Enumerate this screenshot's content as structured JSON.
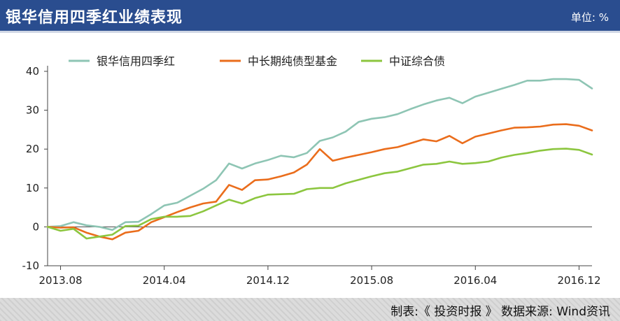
{
  "header": {
    "title": "银华信用四季红业绩表现",
    "unit": "单位: %"
  },
  "footer": {
    "source": "制表:《 投资时报 》  数据来源: Wind资讯"
  },
  "colors": {
    "header_bg": "#2a4d8f",
    "series_1": "#8ec5b4",
    "series_2": "#ea6d1c",
    "series_3": "#8cc63f"
  },
  "chart_data": {
    "type": "line",
    "title": "银华信用四季红业绩表现",
    "ylabel": "",
    "xlabel": "",
    "ylim": [
      -10,
      40
    ],
    "yticks": [
      -10,
      0,
      10,
      20,
      30,
      40
    ],
    "xlim": [
      "2013-07",
      "2017-01"
    ],
    "xtick_labels": [
      "2013.08",
      "2014.04",
      "2014.12",
      "2015.08",
      "2016.04",
      "2016.12"
    ],
    "grid": false,
    "legend_position": "top",
    "x": [
      "2013-07",
      "2013-08",
      "2013-09",
      "2013-10",
      "2013-11",
      "2013-12",
      "2014-01",
      "2014-02",
      "2014-03",
      "2014-04",
      "2014-05",
      "2014-06",
      "2014-07",
      "2014-08",
      "2014-09",
      "2014-10",
      "2014-11",
      "2014-12",
      "2015-01",
      "2015-02",
      "2015-03",
      "2015-04",
      "2015-05",
      "2015-06",
      "2015-07",
      "2015-08",
      "2015-09",
      "2015-10",
      "2015-11",
      "2015-12",
      "2016-01",
      "2016-02",
      "2016-03",
      "2016-04",
      "2016-05",
      "2016-06",
      "2016-07",
      "2016-08",
      "2016-09",
      "2016-10",
      "2016-11",
      "2016-12",
      "2017-01"
    ],
    "series": [
      {
        "name": "银华信用四季红",
        "values": [
          0,
          0.2,
          1.2,
          0.4,
          0,
          -0.8,
          1.2,
          1.3,
          3.3,
          5.5,
          6.2,
          8,
          9.8,
          12,
          16.3,
          15,
          16.3,
          17.2,
          18.3,
          17.9,
          19,
          22.1,
          23,
          24.5,
          27,
          27.8,
          28.2,
          29,
          30.3,
          31.5,
          32.5,
          33.2,
          31.8,
          33.5,
          34.5,
          35.5,
          36.5,
          37.6,
          37.6,
          38,
          38,
          37.8,
          35.6
        ]
      },
      {
        "name": "中长期纯债型基金",
        "values": [
          0,
          -0.2,
          -0.1,
          -1.5,
          -2.5,
          -3.2,
          -1.5,
          -1,
          1.2,
          2.5,
          3.8,
          5,
          6,
          6.5,
          10.8,
          9.5,
          12,
          12.2,
          13,
          14,
          16,
          20,
          17,
          17.8,
          18.5,
          19.2,
          20,
          20.5,
          21.5,
          22.5,
          22,
          23.4,
          21.5,
          23.2,
          24,
          24.8,
          25.5,
          25.6,
          25.8,
          26.3,
          26.4,
          26,
          24.8
        ]
      },
      {
        "name": "中证综合债",
        "values": [
          0,
          -1,
          -0.5,
          -3,
          -2.5,
          -2,
          0.2,
          0.3,
          2,
          2.6,
          2.6,
          2.8,
          4,
          5.5,
          7,
          6,
          7.4,
          8.3,
          8.4,
          8.5,
          9.7,
          10,
          10,
          11.2,
          12.1,
          13,
          13.8,
          14.2,
          15.1,
          16,
          16.2,
          16.8,
          16.2,
          16.4,
          16.8,
          17.8,
          18.5,
          19,
          19.6,
          20,
          20.1,
          19.8,
          18.6
        ]
      }
    ]
  }
}
